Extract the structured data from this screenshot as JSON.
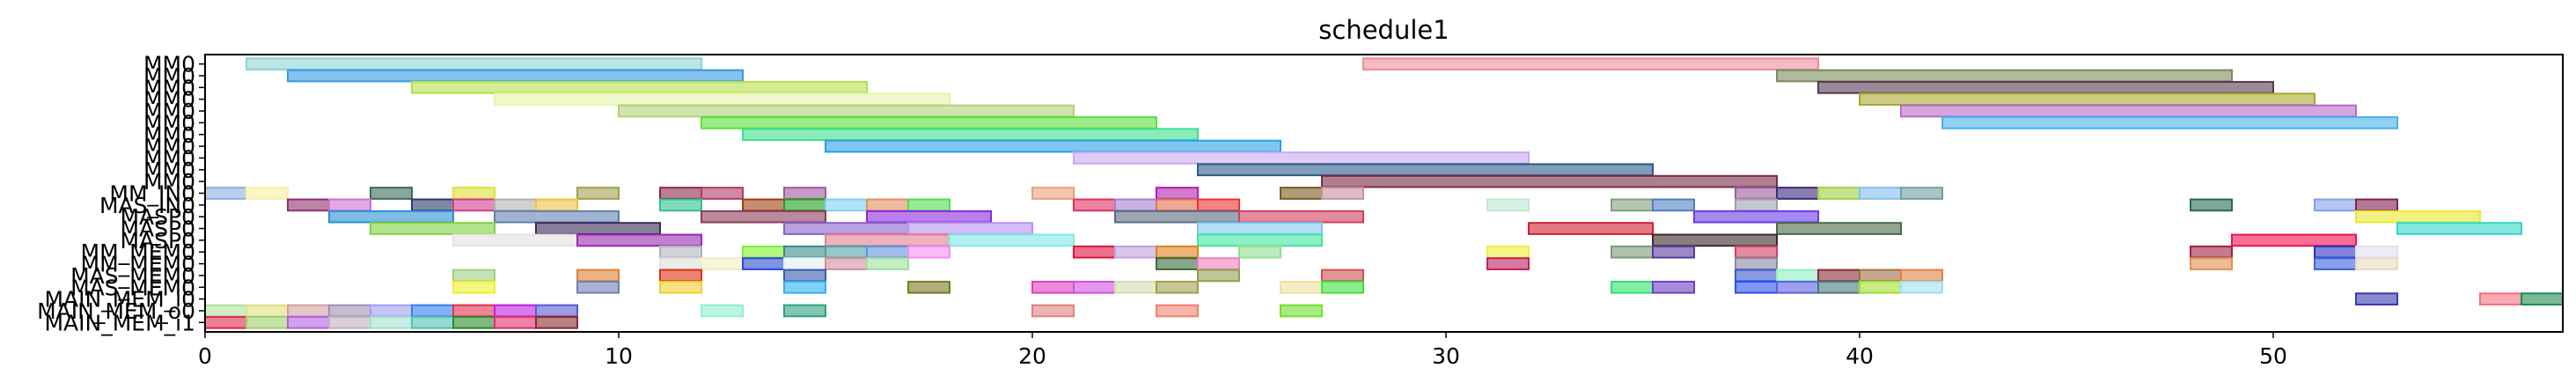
{
  "chart_data": {
    "type": "gantt",
    "title": "schedule1",
    "xlabel": "",
    "ylabel": "",
    "xlim": [
      0,
      57
    ],
    "xticks": [
      0,
      10,
      20,
      30,
      40,
      50
    ],
    "grid": false,
    "rows": [
      {
        "label": "MM0",
        "tasks": [
          {
            "start": 1,
            "end": 12,
            "color": "#8fd3d3"
          },
          {
            "start": 28,
            "end": 39,
            "color": "#f08aa0"
          }
        ]
      },
      {
        "label": "MM0",
        "tasks": [
          {
            "start": 2,
            "end": 13,
            "color": "#3399e6"
          },
          {
            "start": 38,
            "end": 49,
            "color": "#7a8a5a"
          }
        ]
      },
      {
        "label": "MM0",
        "tasks": [
          {
            "start": 5,
            "end": 16,
            "color": "#b5e04a"
          },
          {
            "start": 39,
            "end": 50,
            "color": "#5a3a52"
          }
        ]
      },
      {
        "label": "MM0",
        "tasks": [
          {
            "start": 7,
            "end": 18,
            "color": "#e6f5a8"
          },
          {
            "start": 40,
            "end": 51,
            "color": "#a8a830"
          }
        ]
      },
      {
        "label": "MM0",
        "tasks": [
          {
            "start": 10,
            "end": 21,
            "color": "#b5d07a"
          },
          {
            "start": 41,
            "end": 52,
            "color": "#b86ac8"
          }
        ]
      },
      {
        "label": "MM0",
        "tasks": [
          {
            "start": 12,
            "end": 23,
            "color": "#5ae03a"
          },
          {
            "start": 42,
            "end": 53,
            "color": "#4ab0e8"
          }
        ]
      },
      {
        "label": "MM0",
        "tasks": [
          {
            "start": 13,
            "end": 24,
            "color": "#3ae08a"
          }
        ]
      },
      {
        "label": "MM0",
        "tasks": [
          {
            "start": 15,
            "end": 26,
            "color": "#2aa0e8"
          }
        ]
      },
      {
        "label": "MM0",
        "tasks": [
          {
            "start": 21,
            "end": 32,
            "color": "#c8a8f0"
          }
        ]
      },
      {
        "label": "MM0",
        "tasks": [
          {
            "start": 24,
            "end": 35,
            "color": "#2a5a8a"
          }
        ]
      },
      {
        "label": "MM0",
        "tasks": [
          {
            "start": 27,
            "end": 38,
            "color": "#7a2a48"
          }
        ]
      },
      {
        "label": "MM_IN0",
        "tasks": [
          {
            "start": 0,
            "end": 1,
            "color": "#8ab0e0"
          },
          {
            "start": 1,
            "end": 2,
            "color": "#f8f0a0"
          },
          {
            "start": 4,
            "end": 5,
            "color": "#3a6a5a"
          },
          {
            "start": 6,
            "end": 7,
            "color": "#e0e030"
          },
          {
            "start": 9,
            "end": 10,
            "color": "#a0a050"
          },
          {
            "start": 11,
            "end": 12,
            "color": "#8a2a4a"
          },
          {
            "start": 12,
            "end": 13,
            "color": "#b03a6a"
          },
          {
            "start": 14,
            "end": 15,
            "color": "#a05aa0"
          },
          {
            "start": 20,
            "end": 21,
            "color": "#e8a080"
          },
          {
            "start": 23,
            "end": 24,
            "color": "#b020b0"
          },
          {
            "start": 26,
            "end": 27,
            "color": "#7a5a20"
          },
          {
            "start": 27,
            "end": 28,
            "color": "#c890a0"
          },
          {
            "start": 37,
            "end": 38,
            "color": "#9a5a9a"
          },
          {
            "start": 38,
            "end": 39,
            "color": "#3a2a7a"
          },
          {
            "start": 39,
            "end": 40,
            "color": "#a0d040"
          },
          {
            "start": 40,
            "end": 41,
            "color": "#80c0f0"
          },
          {
            "start": 41,
            "end": 42,
            "color": "#70a0a0"
          }
        ]
      },
      {
        "label": "MAS_IN0",
        "tasks": [
          {
            "start": 2,
            "end": 3,
            "color": "#903070"
          },
          {
            "start": 3,
            "end": 4,
            "color": "#d070d0"
          },
          {
            "start": 5,
            "end": 6,
            "color": "#2a3a6a"
          },
          {
            "start": 6,
            "end": 7,
            "color": "#d04090"
          },
          {
            "start": 7,
            "end": 8,
            "color": "#b0b0b0"
          },
          {
            "start": 8,
            "end": 9,
            "color": "#f0c040"
          },
          {
            "start": 11,
            "end": 12,
            "color": "#30c090"
          },
          {
            "start": 13,
            "end": 14,
            "color": "#a04010"
          },
          {
            "start": 14,
            "end": 15,
            "color": "#20a020"
          },
          {
            "start": 15,
            "end": 16,
            "color": "#80d0f0"
          },
          {
            "start": 16,
            "end": 17,
            "color": "#e09060"
          },
          {
            "start": 17,
            "end": 18,
            "color": "#50e050"
          },
          {
            "start": 21,
            "end": 22,
            "color": "#e03060"
          },
          {
            "start": 22,
            "end": 23,
            "color": "#a080d0"
          },
          {
            "start": 23,
            "end": 24,
            "color": "#e07050"
          },
          {
            "start": 24,
            "end": 25,
            "color": "#f03030"
          },
          {
            "start": 31,
            "end": 32,
            "color": "#c0e8d0"
          },
          {
            "start": 34,
            "end": 35,
            "color": "#80a080"
          },
          {
            "start": 35,
            "end": 36,
            "color": "#5080c0"
          },
          {
            "start": 37,
            "end": 38,
            "color": "#a0a0b0"
          },
          {
            "start": 48,
            "end": 49,
            "color": "#2a6a5a"
          },
          {
            "start": 51,
            "end": 52,
            "color": "#80a0e8"
          },
          {
            "start": 52,
            "end": 53,
            "color": "#802050"
          }
        ]
      },
      {
        "label": "MASP0",
        "tasks": [
          {
            "start": 3,
            "end": 6,
            "color": "#2a90d0"
          },
          {
            "start": 7,
            "end": 10,
            "color": "#6080b0"
          },
          {
            "start": 12,
            "end": 15,
            "color": "#8a3a5a"
          },
          {
            "start": 16,
            "end": 19,
            "color": "#8a2ae0"
          },
          {
            "start": 22,
            "end": 25,
            "color": "#5a6a80"
          },
          {
            "start": 25,
            "end": 28,
            "color": "#d04060"
          },
          {
            "start": 36,
            "end": 39,
            "color": "#6a3ae8"
          },
          {
            "start": 52,
            "end": 55,
            "color": "#e8e830"
          }
        ]
      },
      {
        "label": "MASP0",
        "tasks": [
          {
            "start": 4,
            "end": 7,
            "color": "#80d040"
          },
          {
            "start": 8,
            "end": 11,
            "color": "#3a2a5a"
          },
          {
            "start": 14,
            "end": 17,
            "color": "#8a60c8"
          },
          {
            "start": 17,
            "end": 20,
            "color": "#b890f0"
          },
          {
            "start": 24,
            "end": 27,
            "color": "#80c8f0"
          },
          {
            "start": 32,
            "end": 35,
            "color": "#d02030"
          },
          {
            "start": 38,
            "end": 41,
            "color": "#4a6a4a"
          },
          {
            "start": 53,
            "end": 56,
            "color": "#30d8c8"
          }
        ]
      },
      {
        "label": "MASP0",
        "tasks": [
          {
            "start": 6,
            "end": 9,
            "color": "#e8e0e0"
          },
          {
            "start": 9,
            "end": 12,
            "color": "#9a2ab0"
          },
          {
            "start": 15,
            "end": 18,
            "color": "#e08090"
          },
          {
            "start": 18,
            "end": 21,
            "color": "#80e8e8"
          },
          {
            "start": 24,
            "end": 27,
            "color": "#40e8a0"
          },
          {
            "start": 35,
            "end": 38,
            "color": "#3a2a2a"
          },
          {
            "start": 49,
            "end": 52,
            "color": "#f01050"
          }
        ]
      },
      {
        "label": "MM_MEM0",
        "tasks": [
          {
            "start": 11,
            "end": 12,
            "color": "#b0b0c0"
          },
          {
            "start": 13,
            "end": 14,
            "color": "#80f030"
          },
          {
            "start": 14,
            "end": 15,
            "color": "#3a8a8a"
          },
          {
            "start": 15,
            "end": 16,
            "color": "#50a0a0"
          },
          {
            "start": 16,
            "end": 17,
            "color": "#6090e0"
          },
          {
            "start": 17,
            "end": 18,
            "color": "#f090f0"
          },
          {
            "start": 21,
            "end": 22,
            "color": "#e01040"
          },
          {
            "start": 22,
            "end": 23,
            "color": "#c0a0e0"
          },
          {
            "start": 23,
            "end": 24,
            "color": "#e08020"
          },
          {
            "start": 25,
            "end": 26,
            "color": "#90e090"
          },
          {
            "start": 31,
            "end": 32,
            "color": "#f0f040"
          },
          {
            "start": 34,
            "end": 35,
            "color": "#7a9a7a"
          },
          {
            "start": 35,
            "end": 36,
            "color": "#5a3a9a"
          },
          {
            "start": 37,
            "end": 38,
            "color": "#d04060"
          },
          {
            "start": 48,
            "end": 49,
            "color": "#a02040"
          },
          {
            "start": 51,
            "end": 52,
            "color": "#2a30c0"
          },
          {
            "start": 52,
            "end": 53,
            "color": "#e0e0f0"
          }
        ]
      },
      {
        "label": "MM_MEM0",
        "tasks": [
          {
            "start": 11,
            "end": 12,
            "color": "#e0e0e0"
          },
          {
            "start": 12,
            "end": 13,
            "color": "#f0f0c0"
          },
          {
            "start": 13,
            "end": 14,
            "color": "#2a4ad0"
          },
          {
            "start": 14,
            "end": 15,
            "color": "#e0f0f0"
          },
          {
            "start": 15,
            "end": 16,
            "color": "#d090a0"
          },
          {
            "start": 16,
            "end": 17,
            "color": "#a0e0a0"
          },
          {
            "start": 23,
            "end": 24,
            "color": "#3a6a3a"
          },
          {
            "start": 24,
            "end": 25,
            "color": "#f080c0"
          },
          {
            "start": 31,
            "end": 32,
            "color": "#c02060"
          },
          {
            "start": 37,
            "end": 38,
            "color": "#8a8aa0"
          },
          {
            "start": 48,
            "end": 49,
            "color": "#e09050"
          },
          {
            "start": 51,
            "end": 52,
            "color": "#3a60e0"
          },
          {
            "start": 52,
            "end": 53,
            "color": "#e8d8c0"
          }
        ]
      },
      {
        "label": "MAS_MEM0",
        "tasks": [
          {
            "start": 6,
            "end": 7,
            "color": "#a0d080"
          },
          {
            "start": 9,
            "end": 10,
            "color": "#e08030"
          },
          {
            "start": 11,
            "end": 12,
            "color": "#e03010"
          },
          {
            "start": 14,
            "end": 15,
            "color": "#3a5ab0"
          },
          {
            "start": 24,
            "end": 25,
            "color": "#90a050"
          },
          {
            "start": 27,
            "end": 28,
            "color": "#d05050"
          },
          {
            "start": 37,
            "end": 38,
            "color": "#3a5ad0"
          },
          {
            "start": 38,
            "end": 39,
            "color": "#90f0c0"
          },
          {
            "start": 39,
            "end": 40,
            "color": "#8a2a3a"
          },
          {
            "start": 40,
            "end": 41,
            "color": "#a07040"
          },
          {
            "start": 41,
            "end": 42,
            "color": "#e08040"
          }
        ]
      },
      {
        "label": "MAS_MEM0",
        "tasks": [
          {
            "start": 6,
            "end": 7,
            "color": "#f0f030"
          },
          {
            "start": 9,
            "end": 10,
            "color": "#7080b0"
          },
          {
            "start": 11,
            "end": 12,
            "color": "#f0d030"
          },
          {
            "start": 14,
            "end": 15,
            "color": "#30b0f0"
          },
          {
            "start": 17,
            "end": 18,
            "color": "#7a7a20"
          },
          {
            "start": 20,
            "end": 21,
            "color": "#e040c0"
          },
          {
            "start": 21,
            "end": 22,
            "color": "#d050e0"
          },
          {
            "start": 22,
            "end": 23,
            "color": "#d0e0b0"
          },
          {
            "start": 23,
            "end": 24,
            "color": "#a0a050"
          },
          {
            "start": 26,
            "end": 27,
            "color": "#f0e0a0"
          },
          {
            "start": 27,
            "end": 28,
            "color": "#40e040"
          },
          {
            "start": 34,
            "end": 35,
            "color": "#30e070"
          },
          {
            "start": 35,
            "end": 36,
            "color": "#7040c0"
          },
          {
            "start": 37,
            "end": 38,
            "color": "#2a50f0"
          },
          {
            "start": 38,
            "end": 39,
            "color": "#5a60e0"
          },
          {
            "start": 39,
            "end": 40,
            "color": "#4a7a7a"
          },
          {
            "start": 40,
            "end": 41,
            "color": "#a0e030"
          },
          {
            "start": 41,
            "end": 42,
            "color": "#a0e0f0"
          }
        ]
      },
      {
        "label": "MAIN_MEM_i0",
        "tasks": [
          {
            "start": 52,
            "end": 53,
            "color": "#3a3ab0"
          },
          {
            "start": 55,
            "end": 56,
            "color": "#f07080"
          },
          {
            "start": 56,
            "end": 57,
            "color": "#208a50"
          }
        ]
      },
      {
        "label": "MAIN_MEM_o0",
        "tasks": [
          {
            "start": 0,
            "end": 1,
            "color": "#b0e0a0"
          },
          {
            "start": 1,
            "end": 2,
            "color": "#e0e080"
          },
          {
            "start": 2,
            "end": 3,
            "color": "#d0a0a0"
          },
          {
            "start": 3,
            "end": 4,
            "color": "#a090b0"
          },
          {
            "start": 4,
            "end": 5,
            "color": "#a0a0f0"
          },
          {
            "start": 5,
            "end": 6,
            "color": "#3080f0"
          },
          {
            "start": 6,
            "end": 7,
            "color": "#e03050"
          },
          {
            "start": 7,
            "end": 8,
            "color": "#c020e0"
          },
          {
            "start": 8,
            "end": 9,
            "color": "#5a5ad0"
          },
          {
            "start": 12,
            "end": 13,
            "color": "#90f0d0"
          },
          {
            "start": 14,
            "end": 15,
            "color": "#30a080"
          },
          {
            "start": 20,
            "end": 21,
            "color": "#e08080"
          },
          {
            "start": 23,
            "end": 24,
            "color": "#f08070"
          },
          {
            "start": 26,
            "end": 27,
            "color": "#70e030"
          }
        ]
      },
      {
        "label": "MAIN_MEM_i1",
        "tasks": [
          {
            "start": 0,
            "end": 1,
            "color": "#e02a4a"
          },
          {
            "start": 1,
            "end": 2,
            "color": "#a0d070"
          },
          {
            "start": 2,
            "end": 3,
            "color": "#b060e0"
          },
          {
            "start": 3,
            "end": 4,
            "color": "#c0b0c0"
          },
          {
            "start": 4,
            "end": 5,
            "color": "#a0e0d0"
          },
          {
            "start": 5,
            "end": 6,
            "color": "#50c0b0"
          },
          {
            "start": 6,
            "end": 7,
            "color": "#2a8a2a"
          },
          {
            "start": 7,
            "end": 8,
            "color": "#e03070"
          },
          {
            "start": 8,
            "end": 9,
            "color": "#8a2a30"
          }
        ]
      }
    ]
  }
}
